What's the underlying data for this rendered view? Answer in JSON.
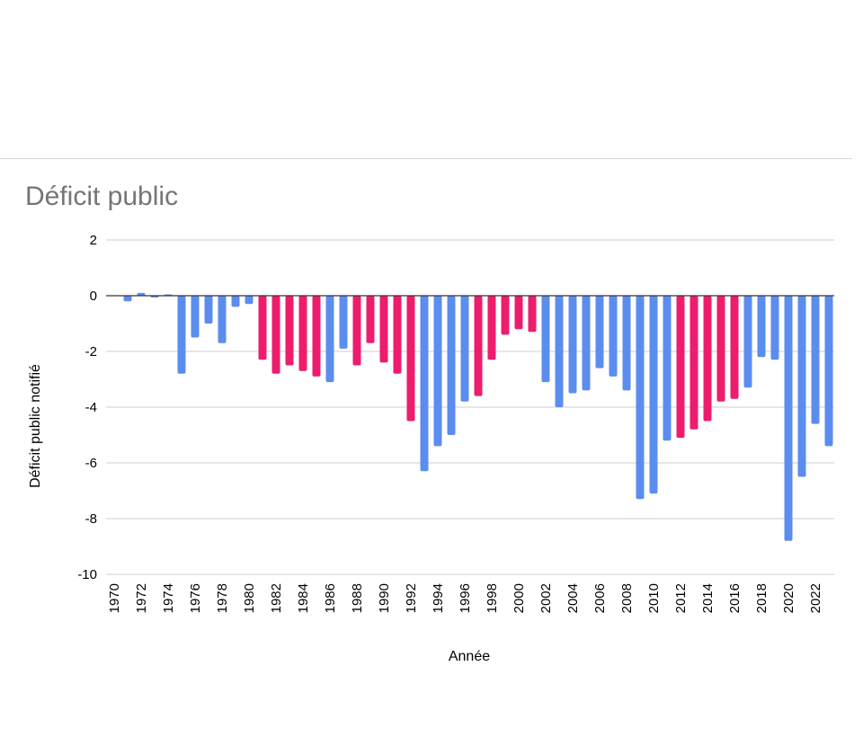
{
  "colors": {
    "blue": "#5b8def",
    "pink": "#ee1c6c",
    "grid": "#cccccc",
    "zero_line": "#333333",
    "title": "#757575"
  },
  "chart_data": {
    "type": "bar",
    "title": "Déficit public",
    "xlabel": "Année",
    "ylabel": "Déficit public notifié",
    "ylim": [
      -10,
      2
    ],
    "yticks": [
      "2",
      "0",
      "-2",
      "-4",
      "-6",
      "-8",
      "-10"
    ],
    "ytick_values": [
      2,
      0,
      -2,
      -4,
      -6,
      -8,
      -10
    ],
    "xtick_labels": [
      "1970",
      "1972",
      "1974",
      "1976",
      "1978",
      "1980",
      "1982",
      "1984",
      "1986",
      "1988",
      "1990",
      "1992",
      "1994",
      "1996",
      "1998",
      "2000",
      "2002",
      "2004",
      "2006",
      "2008",
      "2010",
      "2012",
      "2014",
      "2016",
      "2018",
      "2020",
      "2022"
    ],
    "grid": true,
    "legend": "none",
    "categories": [
      "1970",
      "1971",
      "1972",
      "1973",
      "1974",
      "1975",
      "1976",
      "1977",
      "1978",
      "1979",
      "1980",
      "1981",
      "1982",
      "1983",
      "1984",
      "1985",
      "1986",
      "1987",
      "1988",
      "1989",
      "1990",
      "1991",
      "1992",
      "1993",
      "1994",
      "1995",
      "1996",
      "1997",
      "1998",
      "1999",
      "2000",
      "2001",
      "2002",
      "2003",
      "2004",
      "2005",
      "2006",
      "2007",
      "2008",
      "2009",
      "2010",
      "2011",
      "2012",
      "2013",
      "2014",
      "2015",
      "2016",
      "2017",
      "2018",
      "2019",
      "2020",
      "2021",
      "2022",
      "2023"
    ],
    "values": [
      0,
      -0.2,
      0.1,
      -0.05,
      0.05,
      -2.8,
      -1.5,
      -1.0,
      -1.7,
      -0.4,
      -0.3,
      -2.3,
      -2.8,
      -2.5,
      -2.7,
      -2.9,
      -3.1,
      -1.9,
      -2.5,
      -1.7,
      -2.4,
      -2.8,
      -4.5,
      -6.3,
      -5.4,
      -5.0,
      -3.8,
      -3.6,
      -2.3,
      -1.4,
      -1.2,
      -1.3,
      -3.1,
      -4.0,
      -3.5,
      -3.4,
      -2.6,
      -2.9,
      -3.4,
      -7.3,
      -7.1,
      -5.2,
      -5.1,
      -4.8,
      -4.5,
      -3.8,
      -3.7,
      -3.3,
      -2.2,
      -2.3,
      -8.8,
      -6.5,
      -4.6,
      -5.4
    ],
    "bar_colors": [
      "blue",
      "blue",
      "blue",
      "blue",
      "blue",
      "blue",
      "blue",
      "blue",
      "blue",
      "blue",
      "blue",
      "pink",
      "pink",
      "pink",
      "pink",
      "pink",
      "blue",
      "blue",
      "pink",
      "pink",
      "pink",
      "pink",
      "pink",
      "blue",
      "blue",
      "blue",
      "blue",
      "pink",
      "pink",
      "pink",
      "pink",
      "pink",
      "blue",
      "blue",
      "blue",
      "blue",
      "blue",
      "blue",
      "blue",
      "blue",
      "blue",
      "blue",
      "pink",
      "pink",
      "pink",
      "pink",
      "pink",
      "blue",
      "blue",
      "blue",
      "blue",
      "blue",
      "blue",
      "blue"
    ]
  }
}
